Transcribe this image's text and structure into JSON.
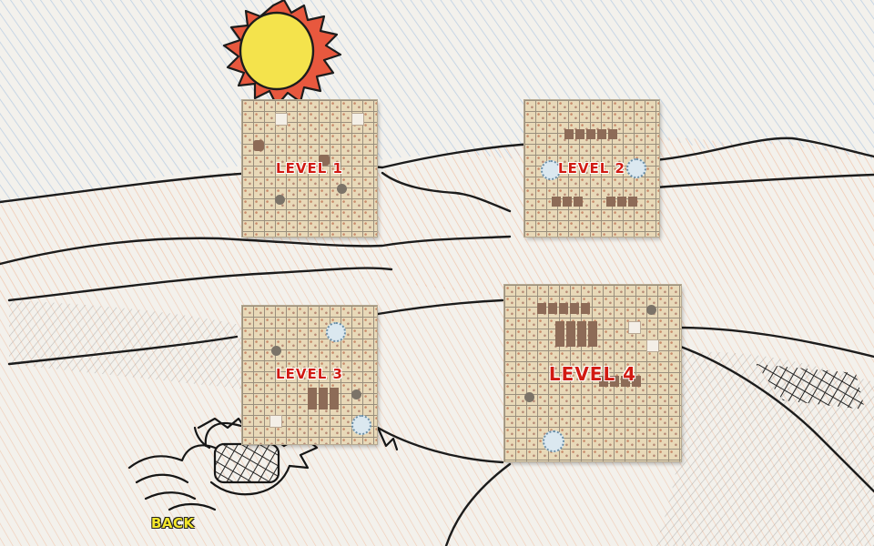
{
  "levels": [
    {
      "label": "LEVEL 1"
    },
    {
      "label": "LEVEL 2"
    },
    {
      "label": "LEVEL 3"
    },
    {
      "label": "LEVEL 4"
    }
  ],
  "back": {
    "label": "BACK"
  },
  "colors": {
    "sun": "#f2e24a",
    "sun_ray": "#e3452e",
    "sky_scribble": "#8fb4dd",
    "dune_scribble": "#f0a57e",
    "level_text": "#d11a12",
    "back_text": "#f3e62a"
  }
}
